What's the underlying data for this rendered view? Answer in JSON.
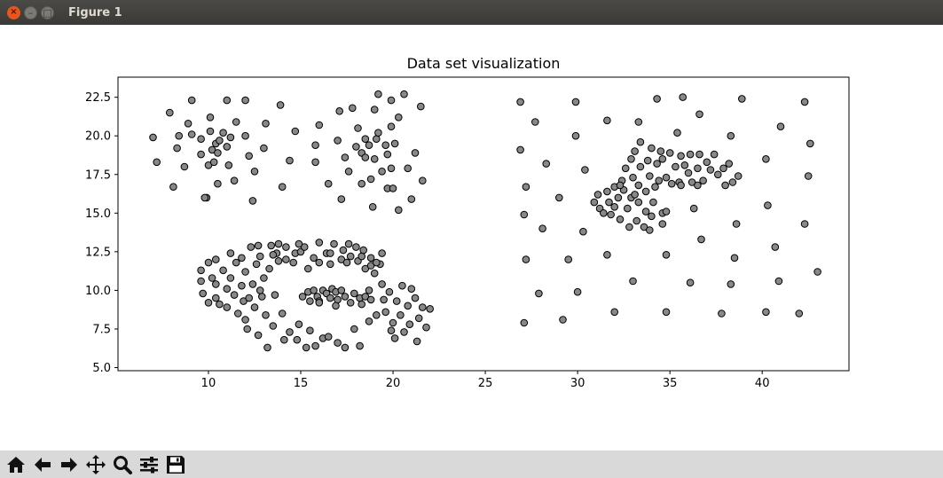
{
  "window": {
    "title": "Figure 1"
  },
  "toolbar": {
    "icons": [
      "home-icon",
      "back-arrow-icon",
      "forward-arrow-icon",
      "pan-icon",
      "zoom-icon",
      "subplots-icon",
      "save-icon"
    ]
  },
  "chart_data": {
    "type": "scatter",
    "title": "Data set visualization",
    "xlabel": "",
    "ylabel": "",
    "xlim": [
      5.1,
      44.7
    ],
    "ylim": [
      4.8,
      23.8
    ],
    "xticks": [
      10,
      15,
      20,
      25,
      30,
      35,
      40
    ],
    "yticks": [
      5.0,
      7.5,
      10.0,
      12.5,
      15.0,
      17.5,
      20.0,
      22.5
    ],
    "ytick_labels": [
      "5.0",
      "7.5",
      "10.0",
      "12.5",
      "15.0",
      "17.5",
      "20.0",
      "22.5"
    ],
    "grid": false,
    "legend": "none",
    "marker_face": "#888888",
    "marker_edge": "#000000",
    "points": [
      [
        7.0,
        19.9
      ],
      [
        7.2,
        18.3
      ],
      [
        7.9,
        21.5
      ],
      [
        8.1,
        16.7
      ],
      [
        8.3,
        19.2
      ],
      [
        8.4,
        20.0
      ],
      [
        8.7,
        18.0
      ],
      [
        8.9,
        20.8
      ],
      [
        9.1,
        22.3
      ],
      [
        9.6,
        18.8
      ],
      [
        9.6,
        19.8
      ],
      [
        9.9,
        16.0
      ],
      [
        10.0,
        18.1
      ],
      [
        10.1,
        20.3
      ],
      [
        10.1,
        21.2
      ],
      [
        10.2,
        19.1
      ],
      [
        10.4,
        19.5
      ],
      [
        10.5,
        18.9
      ],
      [
        10.6,
        19.7
      ],
      [
        10.8,
        20.2
      ],
      [
        11.0,
        19.3
      ],
      [
        11.2,
        19.9
      ],
      [
        11.1,
        18.1
      ],
      [
        11.4,
        17.1
      ],
      [
        11.5,
        20.9
      ],
      [
        12.0,
        20.0
      ],
      [
        12.0,
        22.3
      ],
      [
        12.4,
        15.8
      ],
      [
        12.5,
        17.7
      ],
      [
        12.2,
        18.7
      ],
      [
        13.0,
        19.2
      ],
      [
        13.1,
        20.8
      ],
      [
        13.9,
        22.0
      ],
      [
        14.4,
        18.4
      ],
      [
        14.7,
        20.3
      ],
      [
        14.0,
        16.7
      ],
      [
        10.5,
        16.9
      ],
      [
        9.8,
        16.0
      ],
      [
        10.3,
        18.3
      ],
      [
        9.1,
        20.1
      ],
      [
        11.0,
        22.3
      ],
      [
        15.8,
        18.3
      ],
      [
        15.8,
        19.4
      ],
      [
        16.0,
        20.7
      ],
      [
        16.5,
        16.9
      ],
      [
        17.0,
        19.7
      ],
      [
        17.1,
        21.6
      ],
      [
        17.2,
        15.9
      ],
      [
        17.4,
        18.6
      ],
      [
        17.6,
        17.7
      ],
      [
        18.0,
        19.3
      ],
      [
        18.1,
        20.5
      ],
      [
        18.3,
        18.9
      ],
      [
        18.3,
        16.9
      ],
      [
        18.5,
        18.6
      ],
      [
        18.7,
        19.4
      ],
      [
        18.8,
        17.2
      ],
      [
        19.0,
        18.5
      ],
      [
        19.1,
        19.8
      ],
      [
        19.2,
        20.2
      ],
      [
        19.4,
        17.7
      ],
      [
        19.6,
        19.4
      ],
      [
        19.7,
        18.8
      ],
      [
        19.9,
        17.9
      ],
      [
        19.9,
        20.6
      ],
      [
        20.1,
        19.5
      ],
      [
        20.3,
        21.2
      ],
      [
        20.8,
        17.9
      ],
      [
        21.0,
        15.9
      ],
      [
        21.2,
        18.9
      ],
      [
        21.5,
        21.9
      ],
      [
        21.6,
        17.1
      ],
      [
        19.7,
        16.6
      ],
      [
        20.3,
        15.2
      ],
      [
        17.8,
        21.8
      ],
      [
        18.5,
        19.8
      ],
      [
        19.0,
        21.7
      ],
      [
        19.2,
        22.7
      ],
      [
        20.6,
        22.7
      ],
      [
        19.9,
        22.3
      ],
      [
        20.0,
        16.6
      ],
      [
        18.9,
        15.4
      ],
      [
        9.6,
        10.6
      ],
      [
        9.6,
        11.3
      ],
      [
        9.7,
        9.8
      ],
      [
        10.0,
        11.8
      ],
      [
        10.0,
        9.2
      ],
      [
        10.2,
        10.8
      ],
      [
        10.4,
        10.4
      ],
      [
        10.4,
        12.0
      ],
      [
        10.6,
        9.1
      ],
      [
        10.8,
        11.3
      ],
      [
        11.0,
        10.1
      ],
      [
        11.2,
        10.8
      ],
      [
        11.2,
        12.4
      ],
      [
        11.4,
        9.7
      ],
      [
        11.5,
        11.8
      ],
      [
        11.6,
        8.5
      ],
      [
        11.8,
        10.3
      ],
      [
        11.9,
        9.3
      ],
      [
        12.0,
        8.1
      ],
      [
        12.0,
        11.2
      ],
      [
        12.1,
        7.5
      ],
      [
        12.3,
        12.8
      ],
      [
        12.4,
        10.4
      ],
      [
        12.5,
        8.9
      ],
      [
        12.6,
        11.7
      ],
      [
        12.7,
        7.1
      ],
      [
        12.8,
        12.2
      ],
      [
        12.9,
        9.6
      ],
      [
        13.0,
        10.8
      ],
      [
        13.1,
        8.4
      ],
      [
        13.2,
        6.3
      ],
      [
        13.3,
        11.4
      ],
      [
        13.4,
        12.9
      ],
      [
        13.5,
        7.7
      ],
      [
        13.6,
        9.7
      ],
      [
        13.7,
        12.4
      ],
      [
        13.8,
        11.9
      ],
      [
        14.0,
        8.5
      ],
      [
        14.1,
        6.8
      ],
      [
        14.2,
        12.8
      ],
      [
        14.4,
        7.3
      ],
      [
        14.6,
        11.8
      ],
      [
        14.7,
        12.4
      ],
      [
        14.8,
        6.8
      ],
      [
        14.9,
        7.8
      ],
      [
        15.0,
        12.5
      ],
      [
        15.2,
        12.8
      ],
      [
        15.3,
        6.3
      ],
      [
        15.4,
        11.4
      ],
      [
        15.5,
        7.4
      ],
      [
        15.7,
        12.1
      ],
      [
        15.8,
        6.4
      ],
      [
        16.0,
        11.8
      ],
      [
        16.0,
        13.1
      ],
      [
        16.2,
        6.9
      ],
      [
        16.4,
        12.4
      ],
      [
        16.5,
        7.0
      ],
      [
        16.6,
        11.7
      ],
      [
        16.8,
        13.0
      ],
      [
        17.0,
        6.6
      ],
      [
        17.2,
        12.0
      ],
      [
        17.3,
        12.6
      ],
      [
        17.4,
        6.3
      ],
      [
        17.5,
        11.8
      ],
      [
        17.7,
        12.2
      ],
      [
        17.9,
        7.5
      ],
      [
        18.0,
        12.8
      ],
      [
        18.1,
        11.9
      ],
      [
        18.2,
        6.4
      ],
      [
        18.3,
        12.2
      ],
      [
        18.5,
        11.4
      ],
      [
        18.7,
        8.0
      ],
      [
        18.8,
        11.6
      ],
      [
        19.0,
        11.1
      ],
      [
        19.1,
        8.4
      ],
      [
        19.3,
        11.7
      ],
      [
        19.4,
        10.4
      ],
      [
        19.5,
        9.4
      ],
      [
        19.6,
        8.6
      ],
      [
        19.8,
        9.9
      ],
      [
        19.9,
        7.4
      ],
      [
        20.0,
        7.9
      ],
      [
        20.1,
        6.9
      ],
      [
        20.2,
        9.3
      ],
      [
        20.4,
        8.4
      ],
      [
        20.5,
        10.3
      ],
      [
        20.6,
        7.3
      ],
      [
        20.8,
        9.0
      ],
      [
        20.9,
        7.8
      ],
      [
        21.0,
        10.1
      ],
      [
        21.2,
        9.5
      ],
      [
        21.4,
        8.2
      ],
      [
        21.6,
        8.9
      ],
      [
        21.8,
        7.6
      ],
      [
        22.0,
        8.8
      ],
      [
        21.3,
        6.7
      ],
      [
        16.6,
        12.4
      ],
      [
        17.6,
        13.0
      ],
      [
        18.4,
        12.6
      ],
      [
        18.8,
        12.1
      ],
      [
        12.7,
        12.9
      ],
      [
        13.8,
        13.0
      ],
      [
        13.5,
        12.3
      ],
      [
        14.2,
        12.0
      ],
      [
        14.9,
        13.0
      ],
      [
        12.2,
        9.5
      ],
      [
        12.8,
        10.0
      ],
      [
        11.0,
        8.9
      ],
      [
        10.4,
        9.5
      ],
      [
        11.8,
        12.1
      ],
      [
        19.1,
        11.8
      ],
      [
        19.4,
        12.4
      ],
      [
        15.1,
        9.6
      ],
      [
        15.4,
        9.9
      ],
      [
        15.5,
        9.3
      ],
      [
        15.7,
        10.0
      ],
      [
        15.9,
        9.6
      ],
      [
        16.0,
        9.3
      ],
      [
        16.2,
        10.0
      ],
      [
        16.4,
        9.8
      ],
      [
        16.6,
        9.5
      ],
      [
        16.7,
        10.1
      ],
      [
        16.9,
        9.9
      ],
      [
        17.0,
        9.4
      ],
      [
        17.2,
        10.0
      ],
      [
        17.4,
        9.6
      ],
      [
        17.7,
        9.2
      ],
      [
        17.9,
        9.8
      ],
      [
        18.2,
        9.5
      ],
      [
        18.3,
        9.1
      ],
      [
        18.5,
        9.6
      ],
      [
        18.7,
        10.0
      ],
      [
        18.8,
        9.4
      ],
      [
        16.9,
        9.0
      ],
      [
        16.0,
        9.2
      ],
      [
        26.9,
        22.2
      ],
      [
        26.9,
        19.1
      ],
      [
        27.1,
        14.9
      ],
      [
        27.2,
        16.7
      ],
      [
        27.2,
        12.0
      ],
      [
        27.1,
        7.9
      ],
      [
        27.7,
        20.9
      ],
      [
        27.9,
        9.8
      ],
      [
        28.1,
        14.0
      ],
      [
        28.3,
        18.2
      ],
      [
        29.0,
        16.0
      ],
      [
        29.2,
        8.1
      ],
      [
        29.5,
        12.0
      ],
      [
        29.9,
        22.2
      ],
      [
        29.9,
        20.0
      ],
      [
        30.0,
        9.9
      ],
      [
        30.3,
        13.8
      ],
      [
        30.4,
        17.8
      ],
      [
        31.6,
        12.3
      ],
      [
        31.6,
        21.0
      ],
      [
        32.0,
        8.6
      ],
      [
        33.0,
        10.6
      ],
      [
        33.3,
        20.9
      ],
      [
        34.3,
        22.4
      ],
      [
        34.8,
        8.6
      ],
      [
        34.8,
        12.3
      ],
      [
        35.4,
        20.2
      ],
      [
        35.7,
        22.5
      ],
      [
        36.1,
        10.5
      ],
      [
        36.3,
        15.3
      ],
      [
        36.6,
        21.4
      ],
      [
        36.7,
        13.3
      ],
      [
        37.8,
        8.5
      ],
      [
        38.3,
        10.4
      ],
      [
        38.3,
        20.0
      ],
      [
        38.5,
        12.1
      ],
      [
        38.6,
        14.3
      ],
      [
        38.9,
        22.4
      ],
      [
        40.2,
        18.5
      ],
      [
        40.2,
        8.6
      ],
      [
        40.3,
        15.5
      ],
      [
        40.7,
        12.8
      ],
      [
        40.9,
        10.6
      ],
      [
        41.0,
        20.6
      ],
      [
        42.0,
        8.5
      ],
      [
        42.3,
        22.2
      ],
      [
        42.3,
        14.3
      ],
      [
        42.5,
        17.4
      ],
      [
        42.6,
        19.5
      ],
      [
        43.0,
        11.2
      ],
      [
        30.9,
        15.7
      ],
      [
        31.1,
        16.2
      ],
      [
        31.2,
        15.3
      ],
      [
        31.4,
        15.0
      ],
      [
        31.6,
        16.4
      ],
      [
        31.7,
        15.7
      ],
      [
        31.8,
        14.9
      ],
      [
        32.0,
        16.7
      ],
      [
        32.0,
        15.4
      ],
      [
        32.2,
        16.0
      ],
      [
        32.3,
        14.6
      ],
      [
        32.4,
        17.1
      ],
      [
        32.5,
        16.5
      ],
      [
        32.7,
        15.3
      ],
      [
        32.6,
        17.9
      ],
      [
        32.8,
        14.1
      ],
      [
        32.9,
        16.0
      ],
      [
        32.9,
        18.5
      ],
      [
        33.0,
        17.3
      ],
      [
        33.1,
        19.0
      ],
      [
        33.2,
        14.5
      ],
      [
        33.3,
        15.7
      ],
      [
        33.3,
        16.8
      ],
      [
        33.4,
        19.6
      ],
      [
        33.4,
        18.0
      ],
      [
        33.6,
        14.1
      ],
      [
        33.7,
        15.1
      ],
      [
        33.7,
        16.4
      ],
      [
        33.8,
        18.4
      ],
      [
        33.9,
        17.4
      ],
      [
        34.0,
        14.8
      ],
      [
        34.0,
        19.2
      ],
      [
        34.1,
        15.7
      ],
      [
        34.2,
        16.7
      ],
      [
        34.3,
        18.2
      ],
      [
        34.4,
        17.1
      ],
      [
        34.5,
        19.0
      ],
      [
        34.6,
        14.3
      ],
      [
        34.6,
        15.0
      ],
      [
        34.6,
        18.5
      ],
      [
        34.8,
        17.3
      ],
      [
        35.0,
        18.9
      ],
      [
        35.1,
        16.9
      ],
      [
        35.3,
        18.0
      ],
      [
        35.5,
        17.0
      ],
      [
        35.6,
        18.7
      ],
      [
        35.8,
        18.1
      ],
      [
        36.0,
        17.6
      ],
      [
        36.1,
        18.8
      ],
      [
        36.2,
        17.0
      ],
      [
        36.5,
        17.9
      ],
      [
        36.6,
        18.8
      ],
      [
        36.8,
        17.1
      ],
      [
        37.0,
        18.3
      ],
      [
        37.2,
        17.8
      ],
      [
        37.4,
        18.8
      ],
      [
        37.6,
        17.5
      ],
      [
        37.9,
        17.9
      ],
      [
        38.0,
        16.8
      ],
      [
        38.2,
        18.2
      ],
      [
        38.4,
        17.0
      ],
      [
        38.7,
        17.4
      ],
      [
        32.3,
        16.8
      ],
      [
        33.1,
        16.2
      ],
      [
        34.8,
        15.1
      ],
      [
        33.9,
        13.9
      ],
      [
        35.6,
        16.8
      ],
      [
        36.5,
        16.8
      ]
    ]
  }
}
